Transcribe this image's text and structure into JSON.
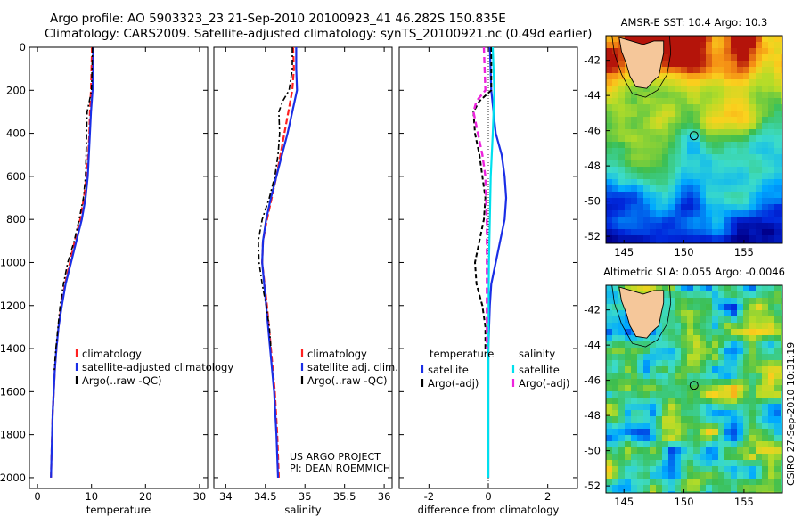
{
  "header": {
    "line1": "Argo profile: AO 5903323_23 21-Sep-2010 20100923_41 46.282S 150.835E",
    "line2": "Climatology: CARS2009. Satellite-adjusted climatology: synTS_20100921.nc (0.49d earlier)"
  },
  "credit": "CSIRO 27-Sep-2010 10:31:19",
  "project": {
    "line1": "US ARGO PROJECT",
    "line2": "PI: DEAN ROEMMICH"
  },
  "colors": {
    "climatology": "#ff2020",
    "satellite": "#1a2ee6",
    "argo": "#000000",
    "sal_satellite": "#00e0ee",
    "sal_argo": "#ee22dd"
  },
  "chart_data": [
    {
      "type": "line",
      "xlabel": "temperature",
      "ylim": [
        2050,
        0
      ],
      "xlim": [
        -1.5,
        31.5
      ],
      "xticks": [
        "0",
        "10",
        "20",
        "30"
      ],
      "yticks": [
        "0",
        "200",
        "400",
        "600",
        "800",
        "1000",
        "1200",
        "1400",
        "1600",
        "1800",
        "2000"
      ],
      "legend": [
        "climatology",
        "satellite-adjusted climatology",
        "Argo(..raw -QC)"
      ],
      "series": [
        {
          "name": "climatology",
          "depth": [
            0,
            100,
            200,
            300,
            400,
            500,
            600,
            700,
            800,
            900,
            1000,
            1100,
            1200,
            1300,
            1400,
            1500,
            1600,
            1700,
            1800,
            1900,
            2000
          ],
          "values": [
            10.1,
            10.0,
            9.9,
            9.7,
            9.6,
            9.4,
            9.1,
            8.6,
            7.9,
            6.9,
            6.0,
            5.1,
            4.4,
            3.9,
            3.5,
            3.2,
            3.0,
            2.8,
            2.7,
            2.6,
            2.5
          ]
        },
        {
          "name": "satellite-adjusted climatology",
          "depth": [
            0,
            100,
            200,
            300,
            400,
            500,
            600,
            700,
            800,
            900,
            1000,
            1100,
            1200,
            1300,
            1400,
            1500,
            1600,
            1700,
            1800,
            1900,
            2000
          ],
          "values": [
            10.3,
            10.3,
            10.2,
            9.9,
            9.7,
            9.5,
            9.3,
            8.9,
            8.2,
            7.2,
            6.2,
            5.2,
            4.5,
            3.9,
            3.5,
            3.2,
            3.0,
            2.8,
            2.7,
            2.6,
            2.5
          ]
        },
        {
          "name": "Argo(..raw -QC)",
          "depth": [
            0,
            100,
            200,
            250,
            300,
            400,
            500,
            600,
            700,
            800,
            900,
            1000,
            1100,
            1200,
            1300,
            1400,
            1500
          ],
          "values": [
            10.2,
            10.1,
            10.0,
            9.6,
            9.2,
            9.1,
            9.0,
            8.9,
            8.5,
            7.7,
            6.8,
            5.6,
            4.8,
            4.2,
            3.8,
            3.4,
            3.1
          ]
        }
      ]
    },
    {
      "type": "line",
      "xlabel": "salinity",
      "ylim": [
        2050,
        0
      ],
      "xlim": [
        33.85,
        36.1
      ],
      "xticks": [
        "34",
        "34.5",
        "35",
        "35.5",
        "36"
      ],
      "legend": [
        "climatology",
        "satellite adj. clim.",
        "Argo(..raw -QC)"
      ],
      "series": [
        {
          "name": "climatology",
          "depth": [
            0,
            100,
            200,
            300,
            400,
            500,
            600,
            700,
            800,
            900,
            1000,
            1200,
            1400,
            1600,
            1800,
            2000
          ],
          "values": [
            34.85,
            34.86,
            34.84,
            34.79,
            34.74,
            34.69,
            34.64,
            34.58,
            34.52,
            34.47,
            34.46,
            34.52,
            34.57,
            34.62,
            34.65,
            34.67
          ]
        },
        {
          "name": "satellite adj. clim.",
          "depth": [
            0,
            100,
            200,
            300,
            400,
            500,
            600,
            700,
            800,
            900,
            1000,
            1200,
            1400,
            1600,
            1800,
            2000
          ],
          "values": [
            34.89,
            34.89,
            34.9,
            34.84,
            34.78,
            34.71,
            34.64,
            34.57,
            34.51,
            34.47,
            34.46,
            34.51,
            34.56,
            34.61,
            34.64,
            34.66
          ]
        },
        {
          "name": "Argo(..raw -QC)",
          "depth": [
            0,
            100,
            200,
            250,
            300,
            400,
            500,
            600,
            700,
            800,
            900,
            1000,
            1100,
            1200,
            1300,
            1400
          ],
          "values": [
            34.84,
            34.84,
            34.8,
            34.72,
            34.67,
            34.68,
            34.66,
            34.62,
            34.55,
            34.46,
            34.41,
            34.42,
            34.46,
            34.51,
            34.55,
            34.57
          ]
        }
      ]
    },
    {
      "type": "line",
      "xlabel": "difference from climatology",
      "ylim": [
        2050,
        0
      ],
      "xlim": [
        -3.0,
        3.0
      ],
      "xticks": [
        "-2",
        "0",
        "2"
      ],
      "legend_groups": [
        {
          "title": "temperature",
          "entries": [
            "satellite",
            "Argo(-adj)"
          ]
        },
        {
          "title": "salinity",
          "entries": [
            "satellite",
            "Argo(-adj)"
          ]
        }
      ],
      "series": [
        {
          "name": "temperature satellite",
          "depth": [
            0,
            200,
            400,
            500,
            600,
            700,
            800,
            900,
            1000,
            1100,
            1200,
            1400,
            1600,
            2000
          ],
          "values": [
            0.05,
            0.1,
            0.25,
            0.45,
            0.55,
            0.6,
            0.55,
            0.4,
            0.25,
            0.1,
            0.05,
            0.0,
            0.0,
            0.0
          ]
        },
        {
          "name": "temperature Argo(-adj)",
          "depth": [
            0,
            200,
            250,
            300,
            400,
            500,
            600,
            700,
            800,
            900,
            1000,
            1100,
            1200,
            1300,
            1400
          ],
          "values": [
            0.1,
            0.1,
            -0.3,
            -0.5,
            -0.45,
            -0.3,
            -0.2,
            -0.1,
            -0.15,
            -0.3,
            -0.45,
            -0.4,
            -0.2,
            -0.1,
            -0.1
          ]
        },
        {
          "name": "salinity satellite",
          "depth": [
            0,
            200,
            400,
            600,
            800,
            1000,
            1200,
            1600,
            2000
          ],
          "values": [
            0.15,
            0.2,
            0.15,
            0.08,
            0.05,
            0.02,
            0.01,
            0.0,
            0.0
          ]
        },
        {
          "name": "salinity Argo(-adj)",
          "depth": [
            0,
            200,
            250,
            300,
            400,
            500,
            600,
            800,
            1000,
            1200,
            1400
          ],
          "values": [
            -0.15,
            -0.1,
            -0.4,
            -0.5,
            -0.35,
            -0.2,
            -0.1,
            -0.05,
            -0.05,
            -0.05,
            -0.05
          ]
        }
      ]
    },
    {
      "type": "heatmap",
      "title": "AMSR-E SST: 10.4 Argo: 10.3",
      "xticks": [
        "145",
        "150",
        "155"
      ],
      "yticks": [
        "-42",
        "-44",
        "-46",
        "-48",
        "-50",
        "-52"
      ]
    },
    {
      "type": "heatmap",
      "title": "Altimetric SLA: 0.055 Argo: -0.0046",
      "xticks": [
        "145",
        "150",
        "155"
      ],
      "yticks": [
        "-42",
        "-44",
        "-46",
        "-48",
        "-50",
        "-52"
      ]
    }
  ]
}
